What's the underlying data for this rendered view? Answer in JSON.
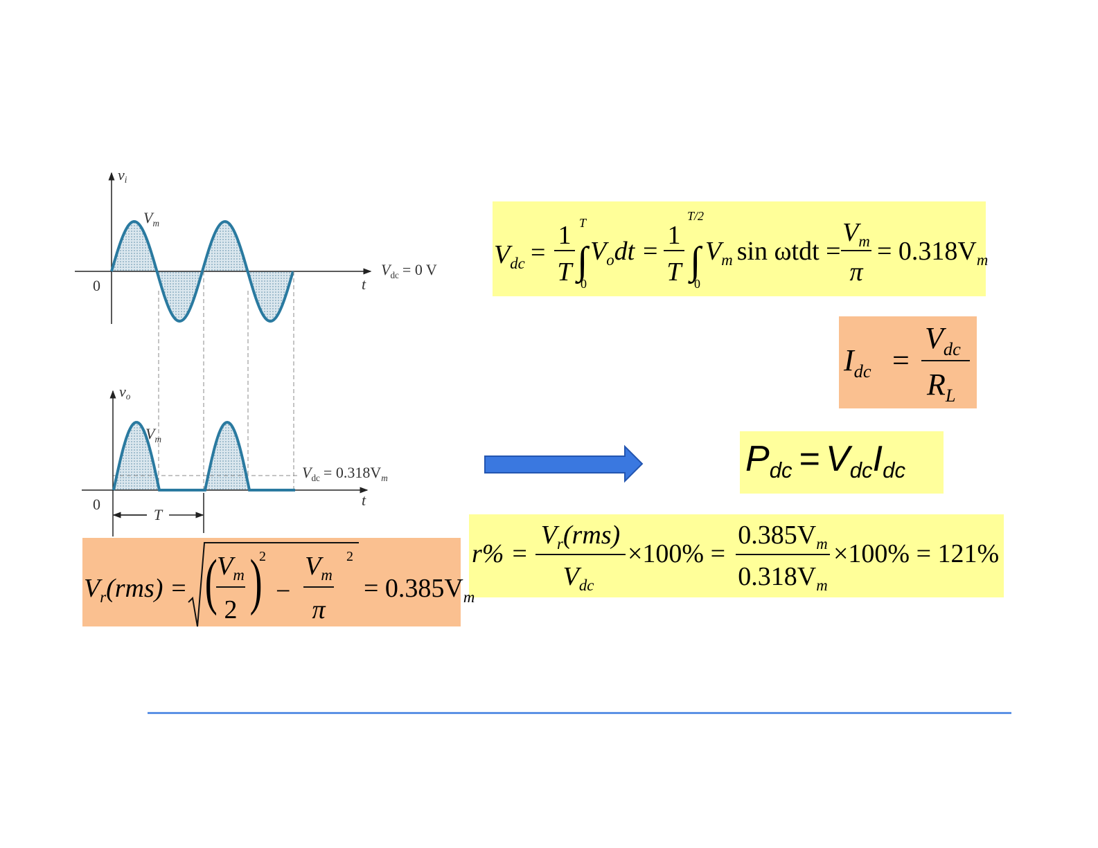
{
  "input_waveform": {
    "y_axis": "v",
    "y_axis_sub": "i",
    "peak": "V",
    "peak_sub": "m",
    "origin": "0",
    "x_axis": "t",
    "dc_label": "V",
    "dc_label_sub": "dc",
    "dc_value": "= 0 V"
  },
  "output_waveform": {
    "y_axis": "v",
    "y_axis_sub": "o",
    "peak": "V",
    "peak_sub": "m",
    "origin": "0",
    "x_axis": "t",
    "dc_label": "V",
    "dc_label_sub": "dc",
    "dc_value": "= 0.318V",
    "dc_value_sub": "m",
    "period": "T"
  },
  "dc_voltage": {
    "lhs": "V",
    "lhs_sub": "dc",
    "eq1": "=",
    "frac1_num": "1",
    "frac1_den": "T",
    "int1_upper": "T",
    "int1_lower": "0",
    "term1": "V",
    "term1_sub": "o",
    "term1_rest": "dt =",
    "frac2_num": "1",
    "frac2_den": "T",
    "int2_upper": "T/2",
    "int2_lower": "0",
    "term2": "V",
    "term2_sub": "m",
    "term2_rest": "sin ωtdt =",
    "frac3_num": "V",
    "frac3_num_sub": "m",
    "frac3_den": "π",
    "result": "= 0.318V",
    "result_sub": "m"
  },
  "dc_current": {
    "lhs": "I",
    "lhs_sub": "dc",
    "eq": "=",
    "num": "V",
    "num_sub": "dc",
    "den": "R",
    "den_sub": "L"
  },
  "dc_power": {
    "lhs": "P",
    "lhs_sub": "dc",
    "eq": "=",
    "rhs1": "V",
    "rhs1_sub": "dc",
    "rhs2": "I",
    "rhs2_sub": "dc"
  },
  "ripple_voltage": {
    "lhs": "V",
    "lhs_sub": "r",
    "lhs_rest": "(rms) =",
    "t1_num": "V",
    "t1_num_sub": "m",
    "t1_den": "2",
    "t1_exp": "2",
    "minus": "−",
    "t2_num": "V",
    "t2_num_sub": "m",
    "t2_den": "π",
    "t2_exp": "2",
    "result": "= 0.385V",
    "result_sub": "m"
  },
  "ripple_factor": {
    "lhs": "r% =",
    "frac1_num": "V",
    "frac1_num_sub": "r",
    "frac1_num_rest": "(rms)",
    "frac1_den": "V",
    "frac1_den_sub": "dc",
    "times1": "×100% =",
    "frac2_num": "0.385V",
    "frac2_num_sub": "m",
    "frac2_den": "0.318V",
    "frac2_den_sub": "m",
    "result": "×100% = 121%"
  }
}
